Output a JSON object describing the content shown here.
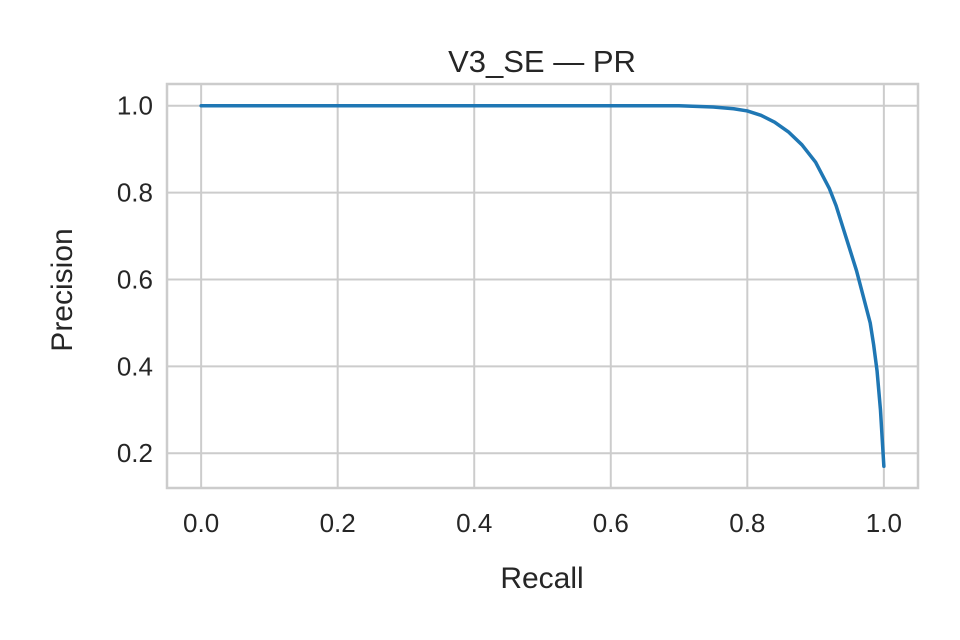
{
  "chart_data": {
    "type": "line",
    "title": "V3_SE — PR",
    "xlabel": "Recall",
    "ylabel": "Precision",
    "xlim": [
      -0.05,
      1.05
    ],
    "ylim": [
      0.12,
      1.05
    ],
    "xticks": [
      0.0,
      0.2,
      0.4,
      0.6,
      0.8,
      1.0
    ],
    "xtick_labels": [
      "0.0",
      "0.2",
      "0.4",
      "0.6",
      "0.8",
      "1.0"
    ],
    "yticks": [
      0.2,
      0.4,
      0.6,
      0.8,
      1.0
    ],
    "ytick_labels": [
      "0.2",
      "0.4",
      "0.6",
      "0.8",
      "1.0"
    ],
    "grid": true,
    "series": [
      {
        "color": "#1f77b4",
        "x": [
          0.0,
          0.1,
          0.2,
          0.3,
          0.4,
          0.5,
          0.6,
          0.65,
          0.7,
          0.75,
          0.78,
          0.8,
          0.82,
          0.84,
          0.86,
          0.88,
          0.9,
          0.92,
          0.93,
          0.94,
          0.95,
          0.96,
          0.97,
          0.98,
          0.985,
          0.99,
          0.995,
          1.0
        ],
        "y": [
          1.0,
          1.0,
          1.0,
          1.0,
          1.0,
          1.0,
          1.0,
          1.0,
          1.0,
          0.997,
          0.993,
          0.988,
          0.978,
          0.962,
          0.94,
          0.91,
          0.87,
          0.81,
          0.77,
          0.72,
          0.67,
          0.62,
          0.56,
          0.5,
          0.45,
          0.39,
          0.3,
          0.17
        ]
      }
    ]
  }
}
